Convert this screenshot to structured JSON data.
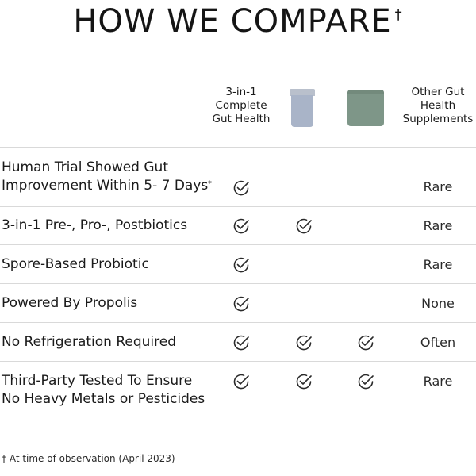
{
  "title": {
    "text": "HOW WE COMPARE",
    "mark": "†"
  },
  "columns": {
    "col1_label": [
      "3-in-1",
      "Complete",
      "Gut Health"
    ],
    "col2_product": "bottle-icon",
    "col3_product": "jar-icon",
    "col4_label": [
      "Other Gut",
      "Health",
      "Supplements"
    ]
  },
  "rows": [
    {
      "label": [
        "Human Trial Showed Gut",
        "Improvement Within 5- 7 Days"
      ],
      "label_mark": "*",
      "checks": [
        true,
        false,
        false
      ],
      "other": "Rare"
    },
    {
      "label": [
        "3-in-1 Pre-, Pro-, Postbiotics"
      ],
      "checks": [
        true,
        true,
        false
      ],
      "other": "Rare"
    },
    {
      "label": [
        "Spore-Based Probiotic"
      ],
      "checks": [
        true,
        false,
        false
      ],
      "other": "Rare"
    },
    {
      "label": [
        "Powered By Propolis"
      ],
      "checks": [
        true,
        false,
        false
      ],
      "other": "None"
    },
    {
      "label": [
        "No Refrigeration Required"
      ],
      "checks": [
        true,
        true,
        true
      ],
      "other": "Often"
    },
    {
      "label": [
        "Third-Party Tested To Ensure",
        "No Heavy Metals or Pesticides"
      ],
      "checks": [
        true,
        true,
        true
      ],
      "other": "Rare"
    }
  ],
  "footnote": "† At time of observation (April 2023)",
  "colors": {
    "text": "#1a1a1a",
    "divider": "#d9d9d9",
    "bottle": "#a9b4c8",
    "jar": "#7e9688",
    "check": "#2a2a2a"
  },
  "icons": {
    "check": "check-circle-icon"
  }
}
